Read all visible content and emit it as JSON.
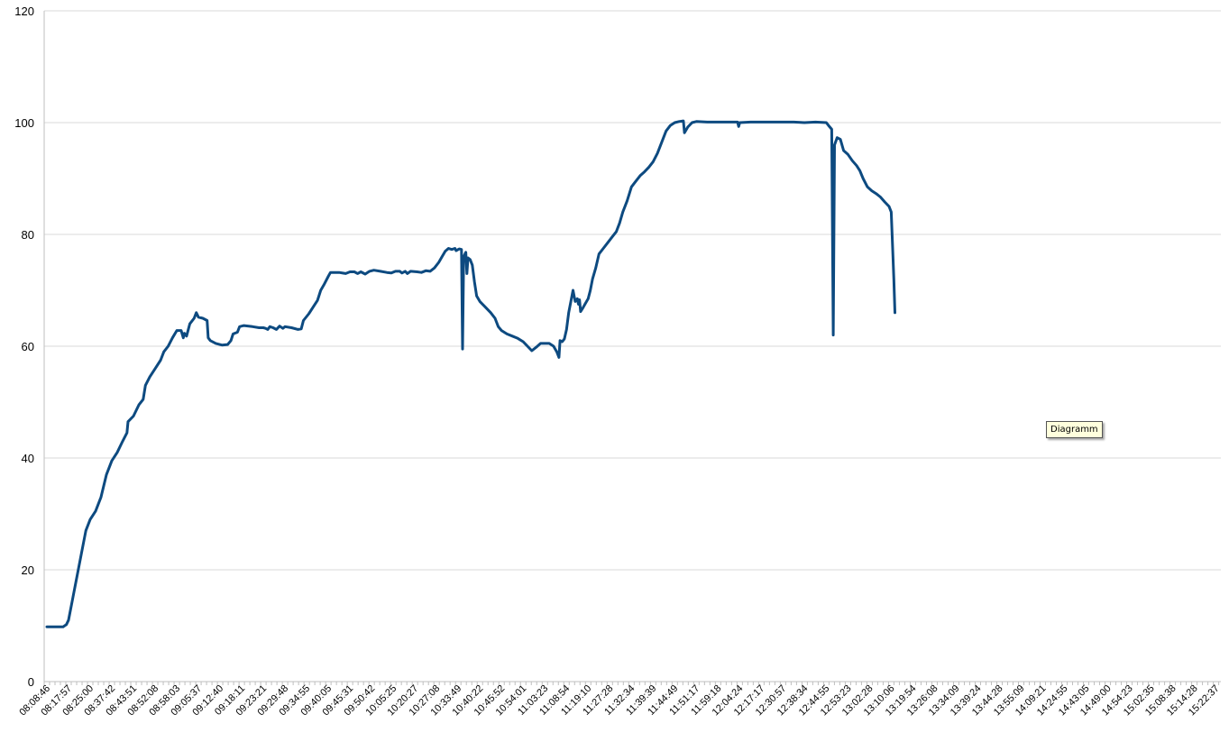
{
  "tooltip": "Diagramm",
  "chart_data": {
    "type": "line",
    "title": "",
    "xlabel": "",
    "ylabel": "",
    "ylim": [
      0,
      120
    ],
    "yticks": [
      0,
      20,
      40,
      60,
      80,
      100,
      120
    ],
    "grid": "horizontal",
    "legend": "none",
    "series_color": "#0d4a80",
    "x_ticks": [
      "08:08:46",
      "08:17:57",
      "08:25:00",
      "08:37:42",
      "08:43:51",
      "08:52:08",
      "08:58:03",
      "09:05:37",
      "09:12:40",
      "09:18:11",
      "09:23:21",
      "09:29:48",
      "09:34:55",
      "09:40:05",
      "09:45:31",
      "09:50:42",
      "10:05:25",
      "10:20:27",
      "10:27:08",
      "10:33:49",
      "10:40:22",
      "10:45:52",
      "10:54:01",
      "11:03:23",
      "11:08:54",
      "11:19:10",
      "11:27:28",
      "11:32:34",
      "11:39:39",
      "11:44:49",
      "11:51:17",
      "11:59:18",
      "12:04:24",
      "12:17:17",
      "12:30:57",
      "12:38:34",
      "12:44:55",
      "12:53:23",
      "13:02:28",
      "13:10:06",
      "13:19:54",
      "13:26:08",
      "13:34:09",
      "13:39:24",
      "13:44:28",
      "13:55:09",
      "14:09:21",
      "14:24:55",
      "14:43:05",
      "14:49:00",
      "14:54:23",
      "15:02:35",
      "15:08:38",
      "15:14:28",
      "15:22:37"
    ],
    "series": [
      {
        "points": [
          [
            0,
            9.8
          ],
          [
            0.75,
            9.8
          ],
          [
            0.9,
            10.2
          ],
          [
            1.0,
            11
          ],
          [
            1.2,
            15
          ],
          [
            1.4,
            19
          ],
          [
            1.6,
            23
          ],
          [
            1.8,
            27
          ],
          [
            2.0,
            29
          ],
          [
            2.25,
            30.5
          ],
          [
            2.5,
            33
          ],
          [
            2.75,
            37
          ],
          [
            3.0,
            39.5
          ],
          [
            3.25,
            41
          ],
          [
            3.5,
            43
          ],
          [
            3.7,
            44.5
          ],
          [
            3.75,
            46.5
          ],
          [
            4.0,
            47.5
          ],
          [
            4.25,
            49.5
          ],
          [
            4.45,
            50.5
          ],
          [
            4.55,
            53
          ],
          [
            4.75,
            54.5
          ],
          [
            5.0,
            56
          ],
          [
            5.25,
            57.5
          ],
          [
            5.4,
            59
          ],
          [
            5.6,
            60
          ],
          [
            5.8,
            61.5
          ],
          [
            6.0,
            62.8
          ],
          [
            6.2,
            62.8
          ],
          [
            6.3,
            61.5
          ],
          [
            6.35,
            62.3
          ],
          [
            6.45,
            61.8
          ],
          [
            6.6,
            64
          ],
          [
            6.8,
            65
          ],
          [
            6.9,
            66
          ],
          [
            7.0,
            65.2
          ],
          [
            7.2,
            65
          ],
          [
            7.4,
            64.6
          ],
          [
            7.45,
            61.5
          ],
          [
            7.55,
            61
          ],
          [
            7.8,
            60.5
          ],
          [
            8.1,
            60.2
          ],
          [
            8.35,
            60.3
          ],
          [
            8.5,
            61
          ],
          [
            8.6,
            62.2
          ],
          [
            8.8,
            62.5
          ],
          [
            8.9,
            63.5
          ],
          [
            9.1,
            63.7
          ],
          [
            9.5,
            63.5
          ],
          [
            9.8,
            63.3
          ],
          [
            10.0,
            63.3
          ],
          [
            10.1,
            63.2
          ],
          [
            10.2,
            63
          ],
          [
            10.3,
            63.5
          ],
          [
            10.45,
            63.3
          ],
          [
            10.6,
            63
          ],
          [
            10.75,
            63.6
          ],
          [
            10.9,
            63.2
          ],
          [
            11.0,
            63.5
          ],
          [
            11.3,
            63.3
          ],
          [
            11.6,
            63
          ],
          [
            11.75,
            63.1
          ],
          [
            11.85,
            64.6
          ],
          [
            12.1,
            65.8
          ],
          [
            12.3,
            67
          ],
          [
            12.5,
            68.2
          ],
          [
            12.65,
            70
          ],
          [
            12.8,
            71
          ],
          [
            13.0,
            72.5
          ],
          [
            13.1,
            73.2
          ],
          [
            13.5,
            73.2
          ],
          [
            13.8,
            73
          ],
          [
            14.0,
            73.3
          ],
          [
            14.2,
            73.3
          ],
          [
            14.35,
            73
          ],
          [
            14.5,
            73.3
          ],
          [
            14.7,
            72.9
          ],
          [
            14.9,
            73.4
          ],
          [
            15.1,
            73.6
          ],
          [
            15.4,
            73.4
          ],
          [
            15.7,
            73.2
          ],
          [
            15.9,
            73.1
          ],
          [
            16.1,
            73.4
          ],
          [
            16.3,
            73.4
          ],
          [
            16.4,
            73.1
          ],
          [
            16.55,
            73.4
          ],
          [
            16.65,
            73
          ],
          [
            16.8,
            73.4
          ],
          [
            17.1,
            73.3
          ],
          [
            17.3,
            73.2
          ],
          [
            17.5,
            73.5
          ],
          [
            17.7,
            73.4
          ],
          [
            17.9,
            74
          ],
          [
            18.1,
            75
          ],
          [
            18.25,
            76
          ],
          [
            18.4,
            77
          ],
          [
            18.55,
            77.5
          ],
          [
            18.7,
            77.3
          ],
          [
            18.85,
            77.5
          ],
          [
            18.9,
            77.1
          ],
          [
            19.05,
            77.4
          ],
          [
            19.15,
            77.3
          ],
          [
            19.2,
            59.5
          ],
          [
            19.25,
            76
          ],
          [
            19.35,
            76.8
          ],
          [
            19.4,
            73
          ],
          [
            19.45,
            75.8
          ],
          [
            19.55,
            75.5
          ],
          [
            19.65,
            74.5
          ],
          [
            19.75,
            71.5
          ],
          [
            19.85,
            69
          ],
          [
            20.0,
            68
          ],
          [
            20.25,
            67
          ],
          [
            20.5,
            66
          ],
          [
            20.7,
            65
          ],
          [
            20.85,
            63.5
          ],
          [
            21.0,
            62.8
          ],
          [
            21.25,
            62.2
          ],
          [
            21.5,
            61.8
          ],
          [
            21.75,
            61.4
          ],
          [
            22.0,
            60.8
          ],
          [
            22.2,
            60
          ],
          [
            22.4,
            59.2
          ],
          [
            22.6,
            59.8
          ],
          [
            22.8,
            60.5
          ],
          [
            23.2,
            60.5
          ],
          [
            23.4,
            60
          ],
          [
            23.55,
            59
          ],
          [
            23.65,
            58
          ],
          [
            23.7,
            61
          ],
          [
            23.8,
            60.8
          ],
          [
            23.9,
            61.3
          ],
          [
            24.0,
            63
          ],
          [
            24.1,
            66
          ],
          [
            24.2,
            68
          ],
          [
            24.3,
            70
          ],
          [
            24.4,
            68
          ],
          [
            24.5,
            68.5
          ],
          [
            24.55,
            67.5
          ],
          [
            24.6,
            68.3
          ],
          [
            24.65,
            66.2
          ],
          [
            24.75,
            66.8
          ],
          [
            24.85,
            67.5
          ],
          [
            25.0,
            68.5
          ],
          [
            25.1,
            70
          ],
          [
            25.2,
            72
          ],
          [
            25.35,
            74
          ],
          [
            25.5,
            76.5
          ],
          [
            25.7,
            77.5
          ],
          [
            25.9,
            78.5
          ],
          [
            26.1,
            79.5
          ],
          [
            26.3,
            80.5
          ],
          [
            26.45,
            82
          ],
          [
            26.6,
            84
          ],
          [
            26.8,
            86
          ],
          [
            27.0,
            88.5
          ],
          [
            27.2,
            89.5
          ],
          [
            27.4,
            90.5
          ],
          [
            27.6,
            91.2
          ],
          [
            27.8,
            92
          ],
          [
            28.0,
            93
          ],
          [
            28.2,
            94.5
          ],
          [
            28.4,
            96.5
          ],
          [
            28.6,
            98.5
          ],
          [
            28.8,
            99.5
          ],
          [
            29.0,
            100
          ],
          [
            29.2,
            100.2
          ],
          [
            29.4,
            100.3
          ],
          [
            29.45,
            98.2
          ],
          [
            29.6,
            99.2
          ],
          [
            29.8,
            100
          ],
          [
            30.0,
            100.2
          ],
          [
            30.5,
            100.1
          ],
          [
            31.0,
            100.1
          ],
          [
            31.5,
            100.1
          ],
          [
            31.9,
            100.1
          ],
          [
            31.95,
            99.3
          ],
          [
            32.0,
            100
          ],
          [
            32.5,
            100.1
          ],
          [
            33.0,
            100.1
          ],
          [
            33.5,
            100.1
          ],
          [
            34.0,
            100.1
          ],
          [
            34.5,
            100.1
          ],
          [
            35.0,
            100
          ],
          [
            35.5,
            100.1
          ],
          [
            36.0,
            100
          ],
          [
            36.1,
            99.5
          ],
          [
            36.25,
            98.8
          ],
          [
            36.32,
            62
          ],
          [
            36.38,
            96
          ],
          [
            36.5,
            97.3
          ],
          [
            36.65,
            97
          ],
          [
            36.8,
            95
          ],
          [
            37.0,
            94.3
          ],
          [
            37.2,
            93.2
          ],
          [
            37.4,
            92.3
          ],
          [
            37.55,
            91.4
          ],
          [
            37.7,
            90
          ],
          [
            37.9,
            88.5
          ],
          [
            38.1,
            87.8
          ],
          [
            38.3,
            87.3
          ],
          [
            38.5,
            86.7
          ],
          [
            38.7,
            85.8
          ],
          [
            38.9,
            85
          ],
          [
            39.0,
            84
          ],
          [
            39.07,
            77
          ],
          [
            39.12,
            72
          ],
          [
            39.17,
            66
          ]
        ]
      }
    ]
  }
}
